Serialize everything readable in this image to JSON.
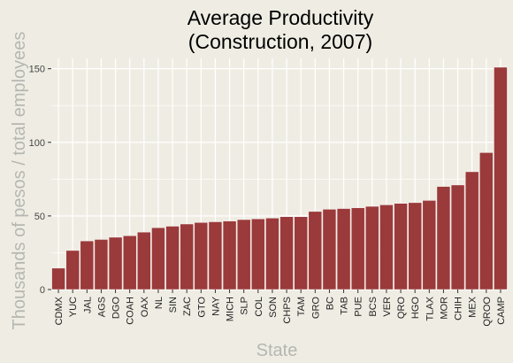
{
  "chart_data": {
    "type": "bar",
    "title": "Average Productivity",
    "subtitle": "(Construction, 2007)",
    "xlabel": "State",
    "ylabel": "Thousands of pesos / total employees",
    "categories": [
      "CDMX",
      "YUC",
      "JAL",
      "AGS",
      "DGO",
      "COAH",
      "OAX",
      "NL",
      "SIN",
      "ZAC",
      "GTO",
      "NAY",
      "MICH",
      "SLP",
      "COL",
      "SON",
      "CHPS",
      "TAM",
      "GRO",
      "BC",
      "TAB",
      "PUE",
      "BCS",
      "VER",
      "QRO",
      "HGO",
      "TLAX",
      "MOR",
      "CHIH",
      "MEX",
      "QROO",
      "CAMP"
    ],
    "values": [
      14.5,
      26.5,
      33,
      34,
      35.5,
      36.5,
      39,
      42,
      43,
      44.5,
      45.5,
      46,
      46.5,
      47.5,
      48,
      48.5,
      49.5,
      49.5,
      53,
      54.5,
      55,
      55.5,
      56.5,
      57.5,
      58.5,
      59,
      60.5,
      70,
      71,
      80,
      93,
      151
    ],
    "yticks": [
      0,
      50,
      100,
      150
    ],
    "ylim": [
      0,
      157
    ],
    "grid": true,
    "colors": {
      "bar": "#9b3a3b",
      "bar_edge": "#ffffff",
      "grid": "#ffffff",
      "background": "#efede3",
      "title": "#000000",
      "axis_label": "#b6b6b2",
      "tick": "#444444"
    }
  }
}
